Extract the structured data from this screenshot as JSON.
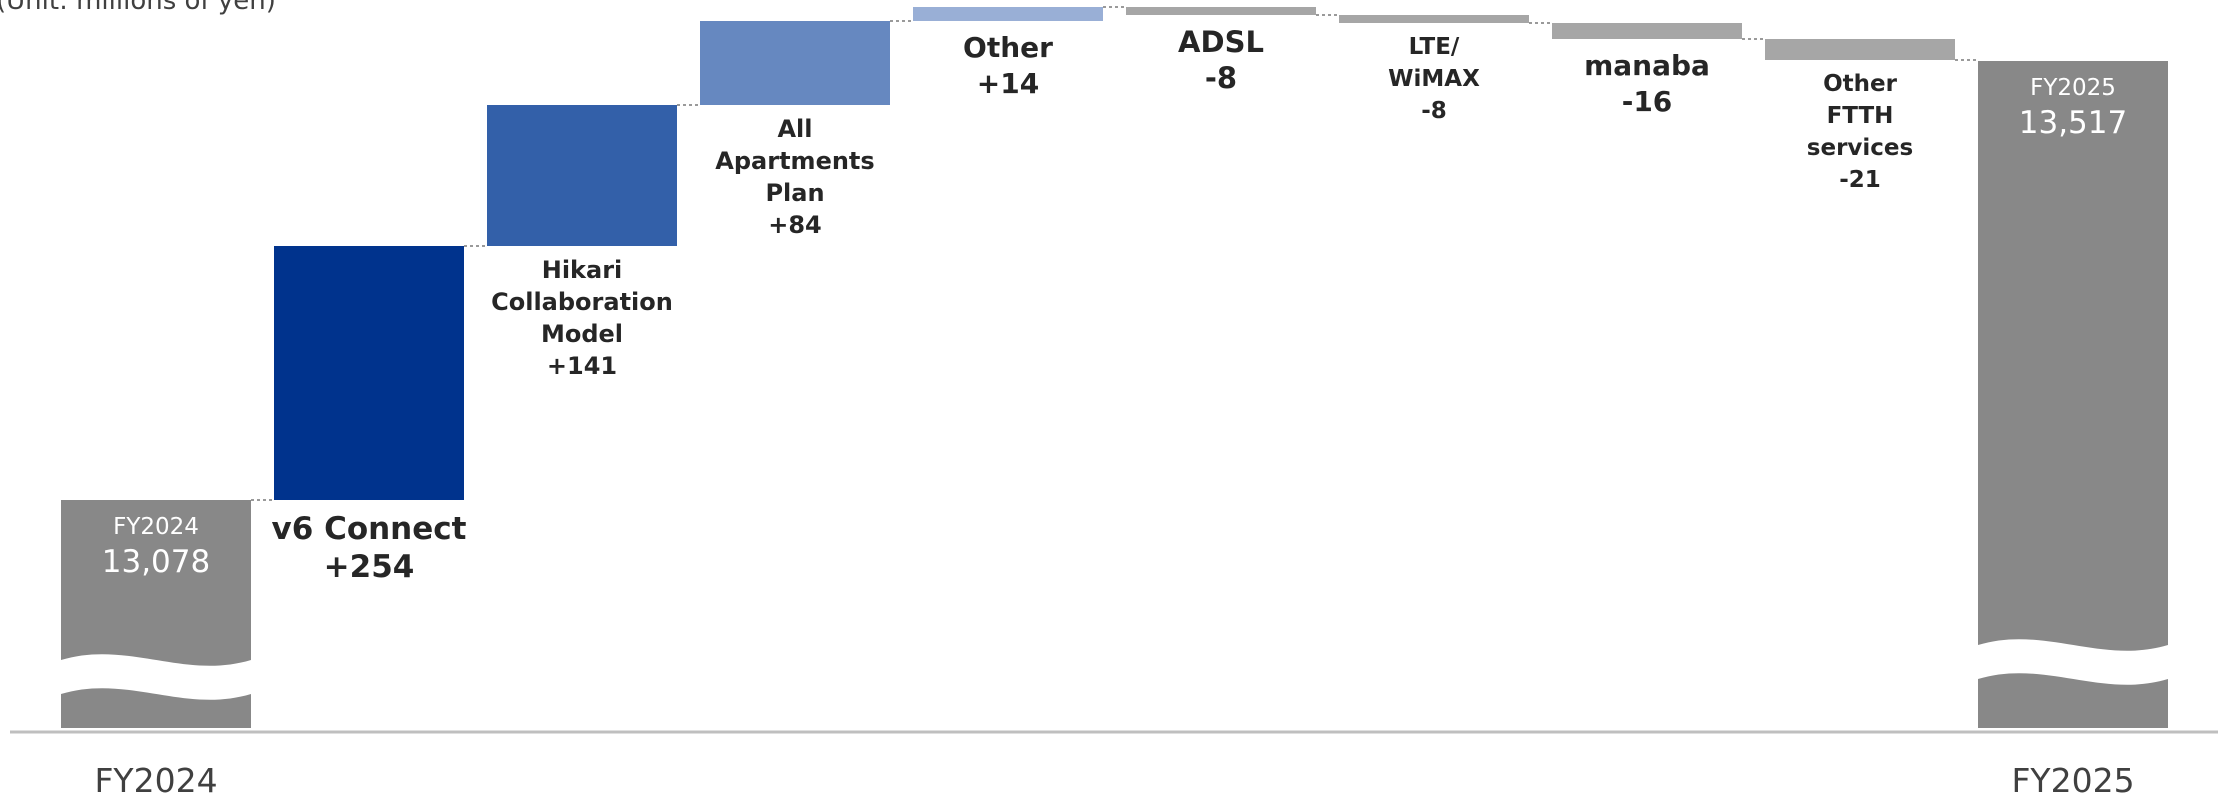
{
  "unit_note": "(Unit: millions of yen)",
  "chart_data": {
    "type": "bar",
    "subtype": "waterfall",
    "start": {
      "label": "FY2024",
      "value": 13078
    },
    "end": {
      "label": "FY2025",
      "value": 13517
    },
    "categories": [
      "v6 Connect",
      "Hikari Collaboration Model",
      "All Apartments Plan",
      "Other",
      "ADSL",
      "LTE/ WiMAX",
      "manaba",
      "Other FTTH services"
    ],
    "values": [
      254,
      141,
      84,
      14,
      -8,
      -8,
      -16,
      -21
    ],
    "data_labels": [
      "+254",
      "+141",
      "+84",
      "+14",
      "-8",
      "-8",
      "-16",
      "-21"
    ],
    "start_value_label": "13,078",
    "end_value_label": "13,517",
    "x_tick_labels": [
      "FY2024",
      "FY2025"
    ],
    "colors": {
      "total": "#888888",
      "increase": [
        "#00338d",
        "#3360a9",
        "#6688c0",
        "#99afd6"
      ],
      "decrease": "#a6a6a6",
      "axis": "#bfbfbf",
      "connector": "#9a9a9a"
    },
    "axis_break": true,
    "grid": false
  }
}
